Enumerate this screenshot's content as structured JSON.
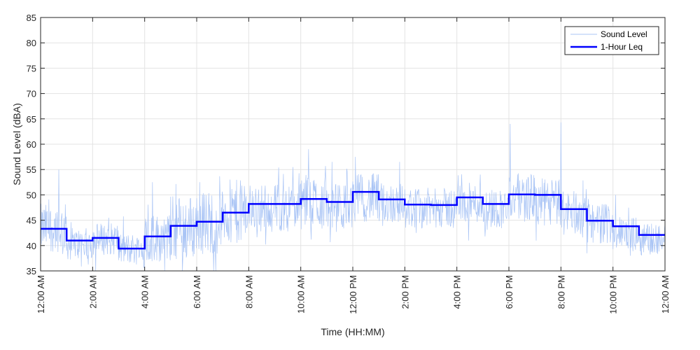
{
  "chart_data": {
    "type": "line",
    "title": "",
    "xlabel": "Time (HH:MM)",
    "ylabel": "Sound Level (dBA)",
    "xlim": [
      0,
      24
    ],
    "ylim": [
      35,
      85
    ],
    "grid": true,
    "legend_position": "top-right",
    "x_tick_values": [
      0,
      2,
      4,
      6,
      8,
      10,
      12,
      14,
      16,
      18,
      20,
      22,
      24
    ],
    "x_tick_labels": [
      "12:00 AM",
      "2:00 AM",
      "4:00 AM",
      "6:00 AM",
      "8:00 AM",
      "10:00 AM",
      "12:00 PM",
      "2:00 PM",
      "4:00 PM",
      "6:00 PM",
      "8:00 PM",
      "10:00 PM",
      "12:00 AM"
    ],
    "y_ticks": [
      35,
      40,
      45,
      50,
      55,
      60,
      65,
      70,
      75,
      80,
      85
    ],
    "series": [
      {
        "name": "Sound Level",
        "color": "#a9c4f5",
        "hourly_base": [
          43,
          40,
          41,
          39,
          41,
          43,
          44,
          46,
          47,
          47,
          48,
          47,
          49,
          48,
          47,
          47,
          48,
          47,
          49,
          48,
          46,
          44,
          42,
          41
        ],
        "hourly_spread": [
          6,
          4,
          4,
          4,
          6,
          8,
          8,
          8,
          6,
          6,
          7,
          6,
          6,
          5,
          5,
          5,
          5,
          5,
          6,
          6,
          6,
          5,
          4,
          4
        ],
        "peaks": [
          {
            "x": 0.7,
            "y": 55
          },
          {
            "x": 4.3,
            "y": 52.5
          },
          {
            "x": 9.7,
            "y": 55.5
          },
          {
            "x": 10.3,
            "y": 59
          },
          {
            "x": 11.2,
            "y": 56.5
          },
          {
            "x": 12.1,
            "y": 57.5
          },
          {
            "x": 13.8,
            "y": 56.5
          },
          {
            "x": 16.9,
            "y": 54
          },
          {
            "x": 18.05,
            "y": 64
          },
          {
            "x": 20.0,
            "y": 64.3
          },
          {
            "x": 22.1,
            "y": 50
          }
        ]
      },
      {
        "name": "1-Hour Leq",
        "color": "#0000ff",
        "hour_starts": [
          0,
          1,
          2,
          3,
          4,
          5,
          6,
          7,
          8,
          9,
          10,
          11,
          12,
          13,
          14,
          15,
          16,
          17,
          18,
          19,
          20,
          21,
          22,
          23
        ],
        "values": [
          43.3,
          41.0,
          41.5,
          39.4,
          41.8,
          43.9,
          44.7,
          46.5,
          48.2,
          48.2,
          49.2,
          48.6,
          50.6,
          49.1,
          48.1,
          48.0,
          49.5,
          48.2,
          50.1,
          50.0,
          47.2,
          44.9,
          43.8,
          42.1
        ]
      }
    ]
  }
}
